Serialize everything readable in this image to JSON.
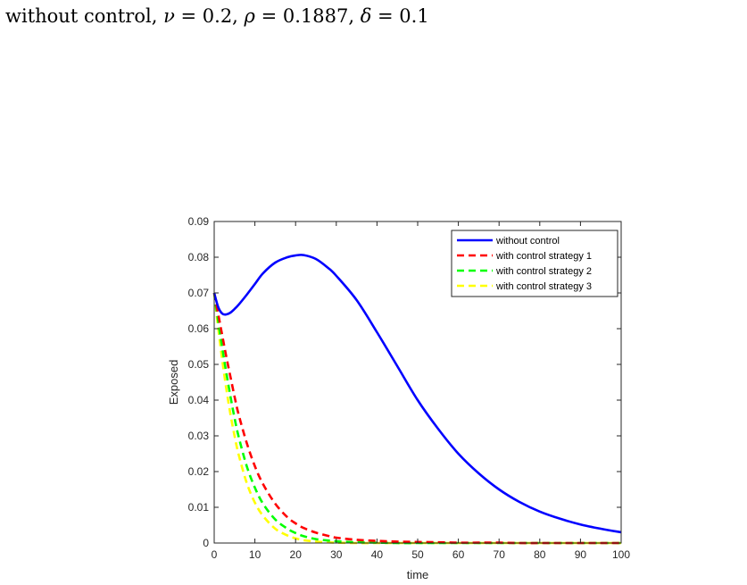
{
  "caption": {
    "prefix": "without control, ",
    "nu_sym": "ν",
    "nu_val": " = 0.2, ",
    "rho_sym": "ρ",
    "rho_val": " = 0.1887,  ",
    "delta_sym": "δ",
    "delta_val": " = 0.1"
  },
  "chart_data": {
    "type": "line",
    "title": "",
    "xlabel": "time",
    "ylabel": "Exposed",
    "xlim": [
      0,
      100
    ],
    "ylim": [
      0,
      0.09
    ],
    "xticks": [
      0,
      10,
      20,
      30,
      40,
      50,
      60,
      70,
      80,
      90,
      100
    ],
    "yticks": [
      0,
      0.01,
      0.02,
      0.03,
      0.04,
      0.05,
      0.06,
      0.07,
      0.08,
      0.09
    ],
    "ytick_labels": [
      "0",
      "0.01",
      "0.02",
      "0.03",
      "0.04",
      "0.05",
      "0.06",
      "0.07",
      "0.08",
      "0.09"
    ],
    "grid": false,
    "legend_position": "top-right",
    "x": [
      0,
      1,
      2,
      3,
      4,
      5,
      6,
      8,
      10,
      12,
      15,
      18,
      20,
      22,
      25,
      28,
      30,
      35,
      40,
      45,
      50,
      55,
      60,
      65,
      70,
      75,
      80,
      85,
      90,
      95,
      100
    ],
    "series": [
      {
        "name": "without control",
        "color": "#0000ff",
        "dash": "solid",
        "values": [
          0.07,
          0.066,
          0.0642,
          0.064,
          0.0645,
          0.0655,
          0.0667,
          0.0695,
          0.0725,
          0.0755,
          0.0785,
          0.08,
          0.0805,
          0.0806,
          0.0795,
          0.077,
          0.0748,
          0.068,
          0.059,
          0.0495,
          0.04,
          0.032,
          0.025,
          0.0195,
          0.015,
          0.0115,
          0.0088,
          0.0068,
          0.0052,
          0.004,
          0.003
        ]
      },
      {
        "name": "with control strategy 1",
        "color": "#ff0000",
        "dash": "dashed",
        "values": [
          0.07,
          0.064,
          0.058,
          0.052,
          0.0465,
          0.041,
          0.036,
          0.028,
          0.0215,
          0.0165,
          0.011,
          0.0072,
          0.0055,
          0.0042,
          0.0029,
          0.002,
          0.0015,
          0.0009,
          0.0006,
          0.0004,
          0.0003,
          0.0002,
          0.0001,
          0.0001,
          0.0001,
          0.0,
          0.0,
          0.0,
          0.0,
          0.0,
          0.0
        ]
      },
      {
        "name": "with control strategy 2",
        "color": "#00ff00",
        "dash": "dashed",
        "values": [
          0.07,
          0.062,
          0.0545,
          0.0475,
          0.041,
          0.035,
          0.0298,
          0.0215,
          0.0155,
          0.011,
          0.0066,
          0.004,
          0.0028,
          0.0019,
          0.0011,
          0.0007,
          0.0005,
          0.0002,
          0.0001,
          0.0,
          0.0,
          0.0,
          0.0,
          0.0,
          0.0,
          0.0,
          0.0,
          0.0,
          0.0,
          0.0,
          0.0
        ]
      },
      {
        "name": "with control strategy 3",
        "color": "#ffff00",
        "dash": "dashed",
        "values": [
          0.07,
          0.06,
          0.051,
          0.043,
          0.036,
          0.03,
          0.0248,
          0.0168,
          0.0113,
          0.0076,
          0.004,
          0.0021,
          0.0013,
          0.0008,
          0.0004,
          0.0002,
          0.0001,
          0.0,
          0.0,
          0.0,
          0.0,
          0.0,
          0.0,
          0.0,
          0.0,
          0.0,
          0.0,
          0.0,
          0.0,
          0.0,
          0.0
        ]
      }
    ]
  }
}
